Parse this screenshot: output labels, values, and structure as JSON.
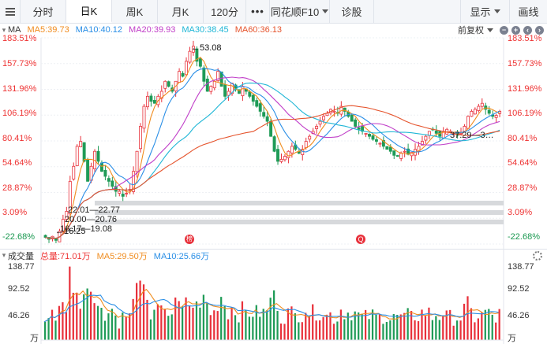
{
  "toolbar": {
    "tabs": [
      {
        "label": "分时",
        "active": false
      },
      {
        "label": "日K",
        "active": true
      },
      {
        "label": "周K",
        "active": false
      },
      {
        "label": "月K",
        "active": false
      },
      {
        "label": "120分",
        "active": false
      },
      {
        "label": "•••",
        "active": false
      },
      {
        "label": "同花顺F10",
        "active": false,
        "dropdown": true
      },
      {
        "label": "诊股",
        "active": false
      }
    ],
    "right": [
      {
        "label": "显示",
        "dropdown": true
      },
      {
        "label": "画线"
      }
    ]
  },
  "ma_header": {
    "name": "MA",
    "ma5": "MA5:39.73",
    "ma10": "MA10:40.12",
    "ma20": "MA20:39.93",
    "ma30": "MA30:38.45",
    "ma60": "MA60:36.13",
    "adjust": "前复权",
    "zoom_out": "−",
    "zoom_in": "+",
    "left": "‹",
    "right": "›"
  },
  "price_axis": [
    "183.51%",
    "157.73%",
    "131.96%",
    "106.19%",
    "80.41%",
    "54.64%",
    "28.87%",
    "3.09%",
    "-22.68%"
  ],
  "annotations": {
    "high": "←53.08",
    "low": "←16.25",
    "range1": "22.01—22.77",
    "range2": "20.00—20.76",
    "range3": "16.17—19.08",
    "range4": "37.29—3…",
    "marker1": "榜",
    "marker2": "Q"
  },
  "volume_header": {
    "name": "成交量",
    "total": "总量:71.01万",
    "ma5": "MA5:29.50万",
    "ma10": "MA10:25.66万"
  },
  "volume_axis": [
    "138.77",
    "92.52",
    "46.26",
    "万"
  ],
  "colors": {
    "up": "#e8313b",
    "down": "#1f9b57",
    "ma5": "#f08c1e",
    "ma10": "#2b8fe6",
    "ma20": "#c03ec8",
    "ma30": "#1fb6d6",
    "ma60": "#e5542d",
    "axis_red": "#e33",
    "axis_green": "#1a9850"
  },
  "chart_data": {
    "type": "candlestick",
    "note_units": "percent change axis",
    "close_series": [
      -16,
      -18,
      -15,
      -19,
      -10,
      2,
      10,
      40,
      55,
      75,
      80,
      60,
      40,
      55,
      70,
      60,
      50,
      45,
      40,
      35,
      30,
      30,
      25,
      28,
      32,
      50,
      70,
      95,
      115,
      125,
      120,
      118,
      125,
      130,
      140,
      135,
      130,
      140,
      150,
      145,
      160,
      170,
      175,
      160,
      155,
      140,
      130,
      135,
      140,
      150,
      135,
      125,
      130,
      138,
      132,
      128,
      135,
      130,
      125,
      120,
      115,
      110,
      105,
      100,
      85,
      70,
      60,
      62,
      65,
      70,
      75,
      72,
      68,
      72,
      80,
      85,
      90,
      95,
      100,
      105,
      108,
      112,
      110,
      108,
      115,
      110,
      105,
      100,
      95,
      92,
      90,
      88,
      85,
      82,
      80,
      78,
      75,
      72,
      70,
      66,
      65,
      68,
      70,
      67,
      69,
      72,
      75,
      80,
      85,
      90,
      92,
      88,
      85,
      90,
      92,
      90,
      88,
      86,
      88,
      95,
      105,
      110,
      112,
      115,
      118,
      112,
      108,
      105,
      106,
      110
    ]
  }
}
